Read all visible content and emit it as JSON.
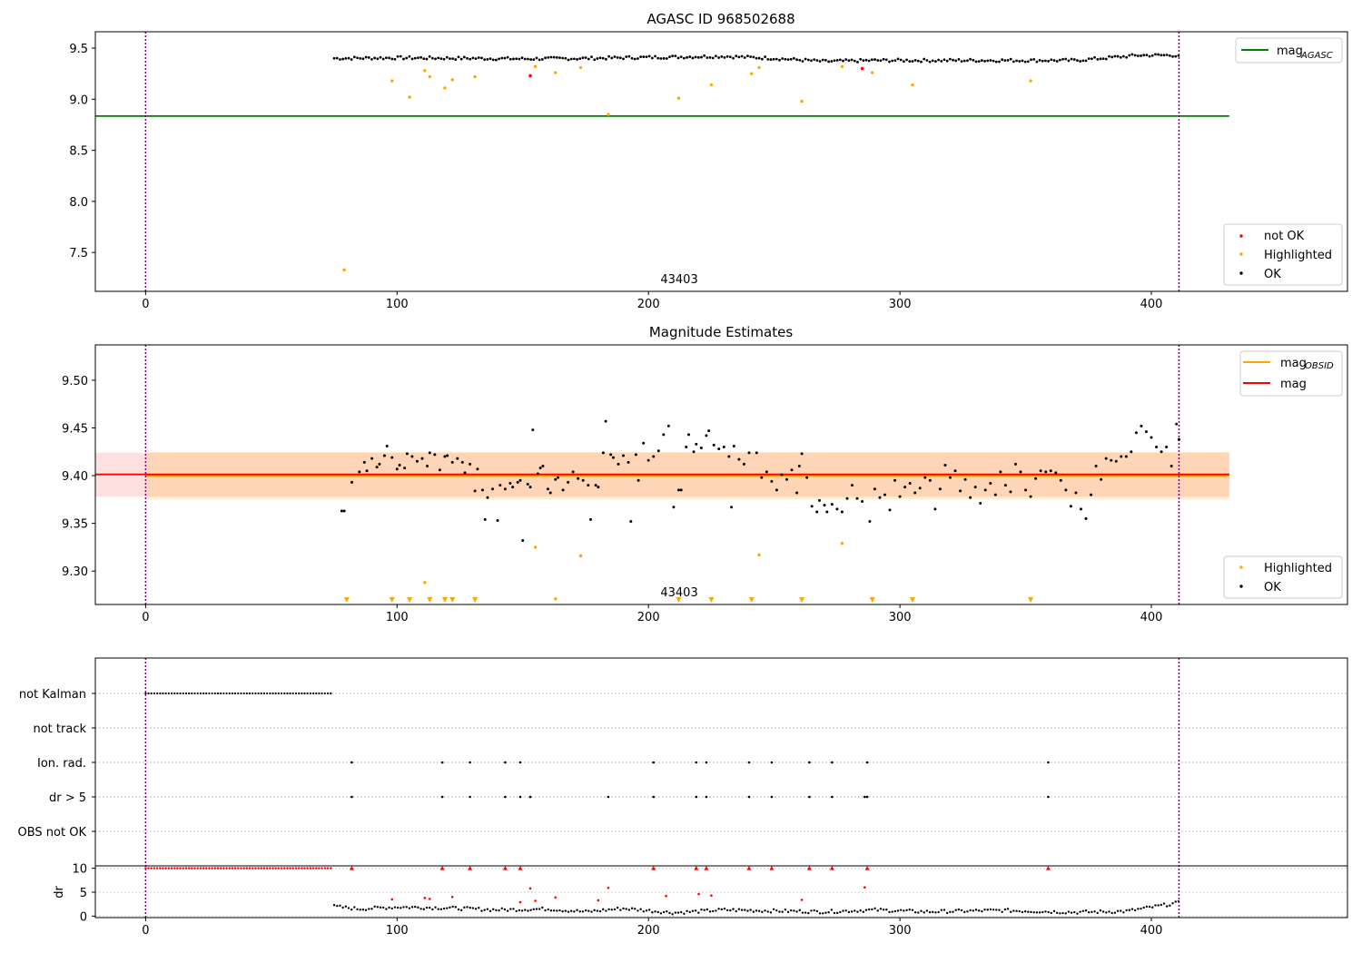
{
  "chart_data": [
    {
      "type": "scatter",
      "title": "AGASC ID 968502688",
      "xlim": [
        -20,
        478
      ],
      "ylim": [
        7.12,
        9.66
      ],
      "xticks": [
        0,
        100,
        200,
        300,
        400
      ],
      "yticks": [
        7.5,
        8.0,
        8.5,
        9.0,
        9.5
      ],
      "vlines": [
        0,
        411
      ],
      "obsid_label": "43403",
      "obsid_label_x": 205,
      "mag_agasc": 8.835,
      "mag_agasc_xrange": [
        -20,
        431
      ],
      "legend_line": {
        "text": "mag",
        "sub": "AGASC",
        "color": "#008000",
        "placement": "top-right"
      },
      "legend_points": [
        {
          "name": "not OK",
          "color": "#ff0000"
        },
        {
          "name": "Highlighted",
          "color": "#ffa500"
        },
        {
          "name": "OK",
          "color": "#000000"
        }
      ],
      "legend_points_placement": "bottom-right",
      "ok_series": {
        "name": "OK",
        "x_start": 75,
        "x_end": 411,
        "step": 1.15,
        "base": [
          [
            75,
            9.4
          ],
          [
            100,
            9.405
          ],
          [
            130,
            9.4
          ],
          [
            150,
            9.395
          ],
          [
            175,
            9.4
          ],
          [
            200,
            9.41
          ],
          [
            230,
            9.42
          ],
          [
            250,
            9.4
          ],
          [
            270,
            9.37
          ],
          [
            290,
            9.38
          ],
          [
            330,
            9.38
          ],
          [
            370,
            9.38
          ],
          [
            395,
            9.43
          ],
          [
            411,
            9.43
          ]
        ]
      },
      "highlighted": [
        [
          79,
          7.33
        ],
        [
          98,
          9.18
        ],
        [
          105,
          9.02
        ],
        [
          111,
          9.28
        ],
        [
          113,
          9.22
        ],
        [
          119,
          9.11
        ],
        [
          122,
          9.19
        ],
        [
          131,
          9.22
        ],
        [
          155,
          9.32
        ],
        [
          163,
          9.26
        ],
        [
          173,
          9.31
        ],
        [
          184,
          8.85
        ],
        [
          212,
          9.01
        ],
        [
          225,
          9.14
        ],
        [
          241,
          9.25
        ],
        [
          244,
          9.31
        ],
        [
          261,
          8.98
        ],
        [
          277,
          9.32
        ],
        [
          289,
          9.26
        ],
        [
          305,
          9.14
        ],
        [
          352,
          9.18
        ]
      ],
      "not_ok": [
        [
          153,
          9.23
        ],
        [
          285,
          9.3
        ]
      ]
    },
    {
      "type": "scatter",
      "title": "Magnitude Estimates",
      "xlim": [
        -20,
        478
      ],
      "ylim": [
        9.265,
        9.537
      ],
      "xticks": [
        0,
        100,
        200,
        300,
        400
      ],
      "yticks": [
        9.3,
        9.35,
        9.4,
        9.45,
        9.5
      ],
      "vlines": [
        0,
        411
      ],
      "obsid_label": "43403",
      "obsid_label_x": 205,
      "mag": {
        "name": "mag",
        "value": 9.4013,
        "band": [
          9.378,
          9.424
        ],
        "color": "#ff0000",
        "xrange": [
          -20,
          431
        ]
      },
      "mag_obsid": {
        "name": "mag",
        "sub": "OBSID",
        "value": 9.3998,
        "band": [
          9.375,
          9.425
        ],
        "color": "#ffa500",
        "xrange": [
          0,
          431
        ]
      },
      "legend_lines_placement": "top-right",
      "legend_points": [
        {
          "name": "Highlighted",
          "color": "#ffa500"
        },
        {
          "name": "OK",
          "color": "#000000"
        }
      ],
      "legend_points_placement": "bottom-right",
      "ok_points": [
        [
          78,
          9.363
        ],
        [
          79,
          9.363
        ],
        [
          82,
          9.393
        ],
        [
          85,
          9.404
        ],
        [
          87,
          9.414
        ],
        [
          88,
          9.405
        ],
        [
          90,
          9.418
        ],
        [
          92,
          9.409
        ],
        [
          93,
          9.412
        ],
        [
          95,
          9.421
        ],
        [
          96,
          9.431
        ],
        [
          98,
          9.419
        ],
        [
          100,
          9.407
        ],
        [
          101,
          9.411
        ],
        [
          103,
          9.408
        ],
        [
          104,
          9.423
        ],
        [
          106,
          9.42
        ],
        [
          108,
          9.415
        ],
        [
          110,
          9.418
        ],
        [
          112,
          9.41
        ],
        [
          113,
          9.424
        ],
        [
          115,
          9.422
        ],
        [
          117,
          9.406
        ],
        [
          119,
          9.42
        ],
        [
          120,
          9.421
        ],
        [
          122,
          9.414
        ],
        [
          124,
          9.418
        ],
        [
          126,
          9.414
        ],
        [
          127,
          9.403
        ],
        [
          129,
          9.412
        ],
        [
          131,
          9.384
        ],
        [
          132,
          9.407
        ],
        [
          134,
          9.385
        ],
        [
          135,
          9.354
        ],
        [
          136,
          9.377
        ],
        [
          138,
          9.386
        ],
        [
          140,
          9.353
        ],
        [
          141,
          9.39
        ],
        [
          143,
          9.386
        ],
        [
          145,
          9.392
        ],
        [
          146,
          9.388
        ],
        [
          148,
          9.393
        ],
        [
          149,
          9.395
        ],
        [
          150,
          9.332
        ],
        [
          152,
          9.391
        ],
        [
          153,
          9.388
        ],
        [
          154,
          9.448
        ],
        [
          156,
          9.402
        ],
        [
          157,
          9.408
        ],
        [
          158,
          9.41
        ],
        [
          160,
          9.386
        ],
        [
          161,
          9.382
        ],
        [
          163,
          9.396
        ],
        [
          164,
          9.398
        ],
        [
          166,
          9.385
        ],
        [
          168,
          9.393
        ],
        [
          170,
          9.404
        ],
        [
          172,
          9.397
        ],
        [
          174,
          9.395
        ],
        [
          176,
          9.39
        ],
        [
          177,
          9.354
        ],
        [
          179,
          9.39
        ],
        [
          180,
          9.388
        ],
        [
          182,
          9.424
        ],
        [
          183,
          9.457
        ],
        [
          185,
          9.422
        ],
        [
          186,
          9.419
        ],
        [
          188,
          9.412
        ],
        [
          190,
          9.421
        ],
        [
          192,
          9.414
        ],
        [
          193,
          9.352
        ],
        [
          195,
          9.422
        ],
        [
          196,
          9.395
        ],
        [
          198,
          9.434
        ],
        [
          200,
          9.416
        ],
        [
          202,
          9.42
        ],
        [
          204,
          9.426
        ],
        [
          206,
          9.443
        ],
        [
          208,
          9.452
        ],
        [
          210,
          9.367
        ],
        [
          212,
          9.385
        ],
        [
          213,
          9.385
        ],
        [
          215,
          9.43
        ],
        [
          216,
          9.443
        ],
        [
          218,
          9.425
        ],
        [
          219,
          9.433
        ],
        [
          221,
          9.429
        ],
        [
          223,
          9.442
        ],
        [
          224,
          9.447
        ],
        [
          226,
          9.432
        ],
        [
          228,
          9.428
        ],
        [
          230,
          9.43
        ],
        [
          232,
          9.42
        ],
        [
          233,
          9.367
        ],
        [
          234,
          9.431
        ],
        [
          236,
          9.417
        ],
        [
          238,
          9.412
        ],
        [
          240,
          9.424
        ],
        [
          243,
          9.424
        ],
        [
          245,
          9.398
        ],
        [
          247,
          9.404
        ],
        [
          249,
          9.394
        ],
        [
          251,
          9.385
        ],
        [
          253,
          9.401
        ],
        [
          255,
          9.396
        ],
        [
          257,
          9.406
        ],
        [
          259,
          9.382
        ],
        [
          260,
          9.41
        ],
        [
          261,
          9.423
        ],
        [
          263,
          9.398
        ],
        [
          265,
          9.368
        ],
        [
          267,
          9.362
        ],
        [
          268,
          9.374
        ],
        [
          270,
          9.369
        ],
        [
          271,
          9.362
        ],
        [
          273,
          9.37
        ],
        [
          275,
          9.365
        ],
        [
          277,
          9.362
        ],
        [
          279,
          9.376
        ],
        [
          281,
          9.39
        ],
        [
          283,
          9.376
        ],
        [
          285,
          9.373
        ],
        [
          288,
          9.352
        ],
        [
          290,
          9.386
        ],
        [
          292,
          9.377
        ],
        [
          294,
          9.38
        ],
        [
          296,
          9.364
        ],
        [
          298,
          9.395
        ],
        [
          300,
          9.378
        ],
        [
          302,
          9.388
        ],
        [
          304,
          9.392
        ],
        [
          306,
          9.382
        ],
        [
          308,
          9.387
        ],
        [
          310,
          9.398
        ],
        [
          312,
          9.395
        ],
        [
          314,
          9.365
        ],
        [
          316,
          9.386
        ],
        [
          318,
          9.411
        ],
        [
          320,
          9.398
        ],
        [
          322,
          9.405
        ],
        [
          324,
          9.384
        ],
        [
          326,
          9.396
        ],
        [
          328,
          9.377
        ],
        [
          330,
          9.388
        ],
        [
          332,
          9.371
        ],
        [
          334,
          9.385
        ],
        [
          336,
          9.392
        ],
        [
          338,
          9.38
        ],
        [
          340,
          9.404
        ],
        [
          342,
          9.39
        ],
        [
          344,
          9.383
        ],
        [
          346,
          9.412
        ],
        [
          348,
          9.404
        ],
        [
          350,
          9.385
        ],
        [
          352,
          9.378
        ],
        [
          354,
          9.397
        ],
        [
          356,
          9.405
        ],
        [
          358,
          9.404
        ],
        [
          360,
          9.405
        ],
        [
          362,
          9.403
        ],
        [
          364,
          9.395
        ],
        [
          366,
          9.385
        ],
        [
          368,
          9.368
        ],
        [
          370,
          9.382
        ],
        [
          372,
          9.365
        ],
        [
          374,
          9.355
        ],
        [
          376,
          9.38
        ],
        [
          378,
          9.41
        ],
        [
          380,
          9.396
        ],
        [
          382,
          9.418
        ],
        [
          384,
          9.416
        ],
        [
          386,
          9.415
        ],
        [
          388,
          9.42
        ],
        [
          390,
          9.42
        ],
        [
          392,
          9.425
        ],
        [
          394,
          9.445
        ],
        [
          396,
          9.452
        ],
        [
          398,
          9.446
        ],
        [
          400,
          9.44
        ],
        [
          402,
          9.43
        ],
        [
          404,
          9.425
        ],
        [
          406,
          9.43
        ],
        [
          408,
          9.41
        ],
        [
          410,
          9.454
        ],
        [
          411,
          9.438
        ]
      ],
      "highlighted": [
        [
          111,
          9.288
        ],
        [
          155,
          9.325
        ],
        [
          163,
          9.271
        ],
        [
          173,
          9.316
        ],
        [
          244,
          9.317
        ],
        [
          277,
          9.329
        ]
      ],
      "highlighted_below_range_x": [
        80,
        98,
        105,
        113,
        119,
        122,
        131,
        212,
        225,
        241,
        261,
        289,
        305,
        352
      ]
    },
    {
      "type": "scatter",
      "xlim": [
        -20,
        478
      ],
      "xticks": [
        0,
        100,
        200,
        300,
        400
      ],
      "vlines": [
        0,
        411
      ],
      "flag_rows": [
        "not Kalman",
        "not track",
        "Ion. rad.",
        "dr > 5",
        "OBS not OK"
      ],
      "not_kalman_xrange": [
        0,
        74
      ],
      "ion_rad_x": [
        82,
        118,
        129,
        143,
        149,
        202,
        219,
        223,
        240,
        249,
        264,
        273,
        287,
        359
      ],
      "dr_gt5_x": [
        82,
        118,
        129,
        143,
        149,
        153,
        184,
        202,
        219,
        223,
        240,
        249,
        264,
        273,
        286,
        287,
        359
      ],
      "dr_ylabel": "dr",
      "dr_ylim": [
        -0.5,
        10.5
      ],
      "dr_yticks": [
        0,
        5,
        10
      ],
      "dr_cap": 10,
      "dr_capped_x": [
        82,
        118,
        129,
        143,
        149,
        202,
        219,
        223,
        240,
        249,
        264,
        273,
        287,
        359
      ],
      "dr_red_points": [
        [
          98,
          3.5
        ],
        [
          111,
          3.8
        ],
        [
          113,
          3.6
        ],
        [
          122,
          4
        ],
        [
          149,
          2.9
        ],
        [
          153,
          5.8
        ],
        [
          155,
          3.2
        ],
        [
          163,
          3.9
        ],
        [
          180,
          3.3
        ],
        [
          184,
          5.9
        ],
        [
          207,
          4.2
        ],
        [
          220,
          4.6
        ],
        [
          225,
          4.3
        ],
        [
          261,
          3.4
        ],
        [
          286,
          6
        ]
      ],
      "dr_ok_base": [
        [
          75,
          2
        ],
        [
          85,
          1.5
        ],
        [
          100,
          1.9
        ],
        [
          120,
          1.7
        ],
        [
          140,
          1.3
        ],
        [
          160,
          1.5
        ],
        [
          175,
          0.9
        ],
        [
          190,
          1.6
        ],
        [
          210,
          0.7
        ],
        [
          230,
          1.3
        ],
        [
          250,
          1.1
        ],
        [
          270,
          0.9
        ],
        [
          290,
          1.3
        ],
        [
          310,
          0.9
        ],
        [
          340,
          1.2
        ],
        [
          370,
          0.8
        ],
        [
          390,
          1
        ],
        [
          411,
          2.8
        ]
      ]
    }
  ]
}
